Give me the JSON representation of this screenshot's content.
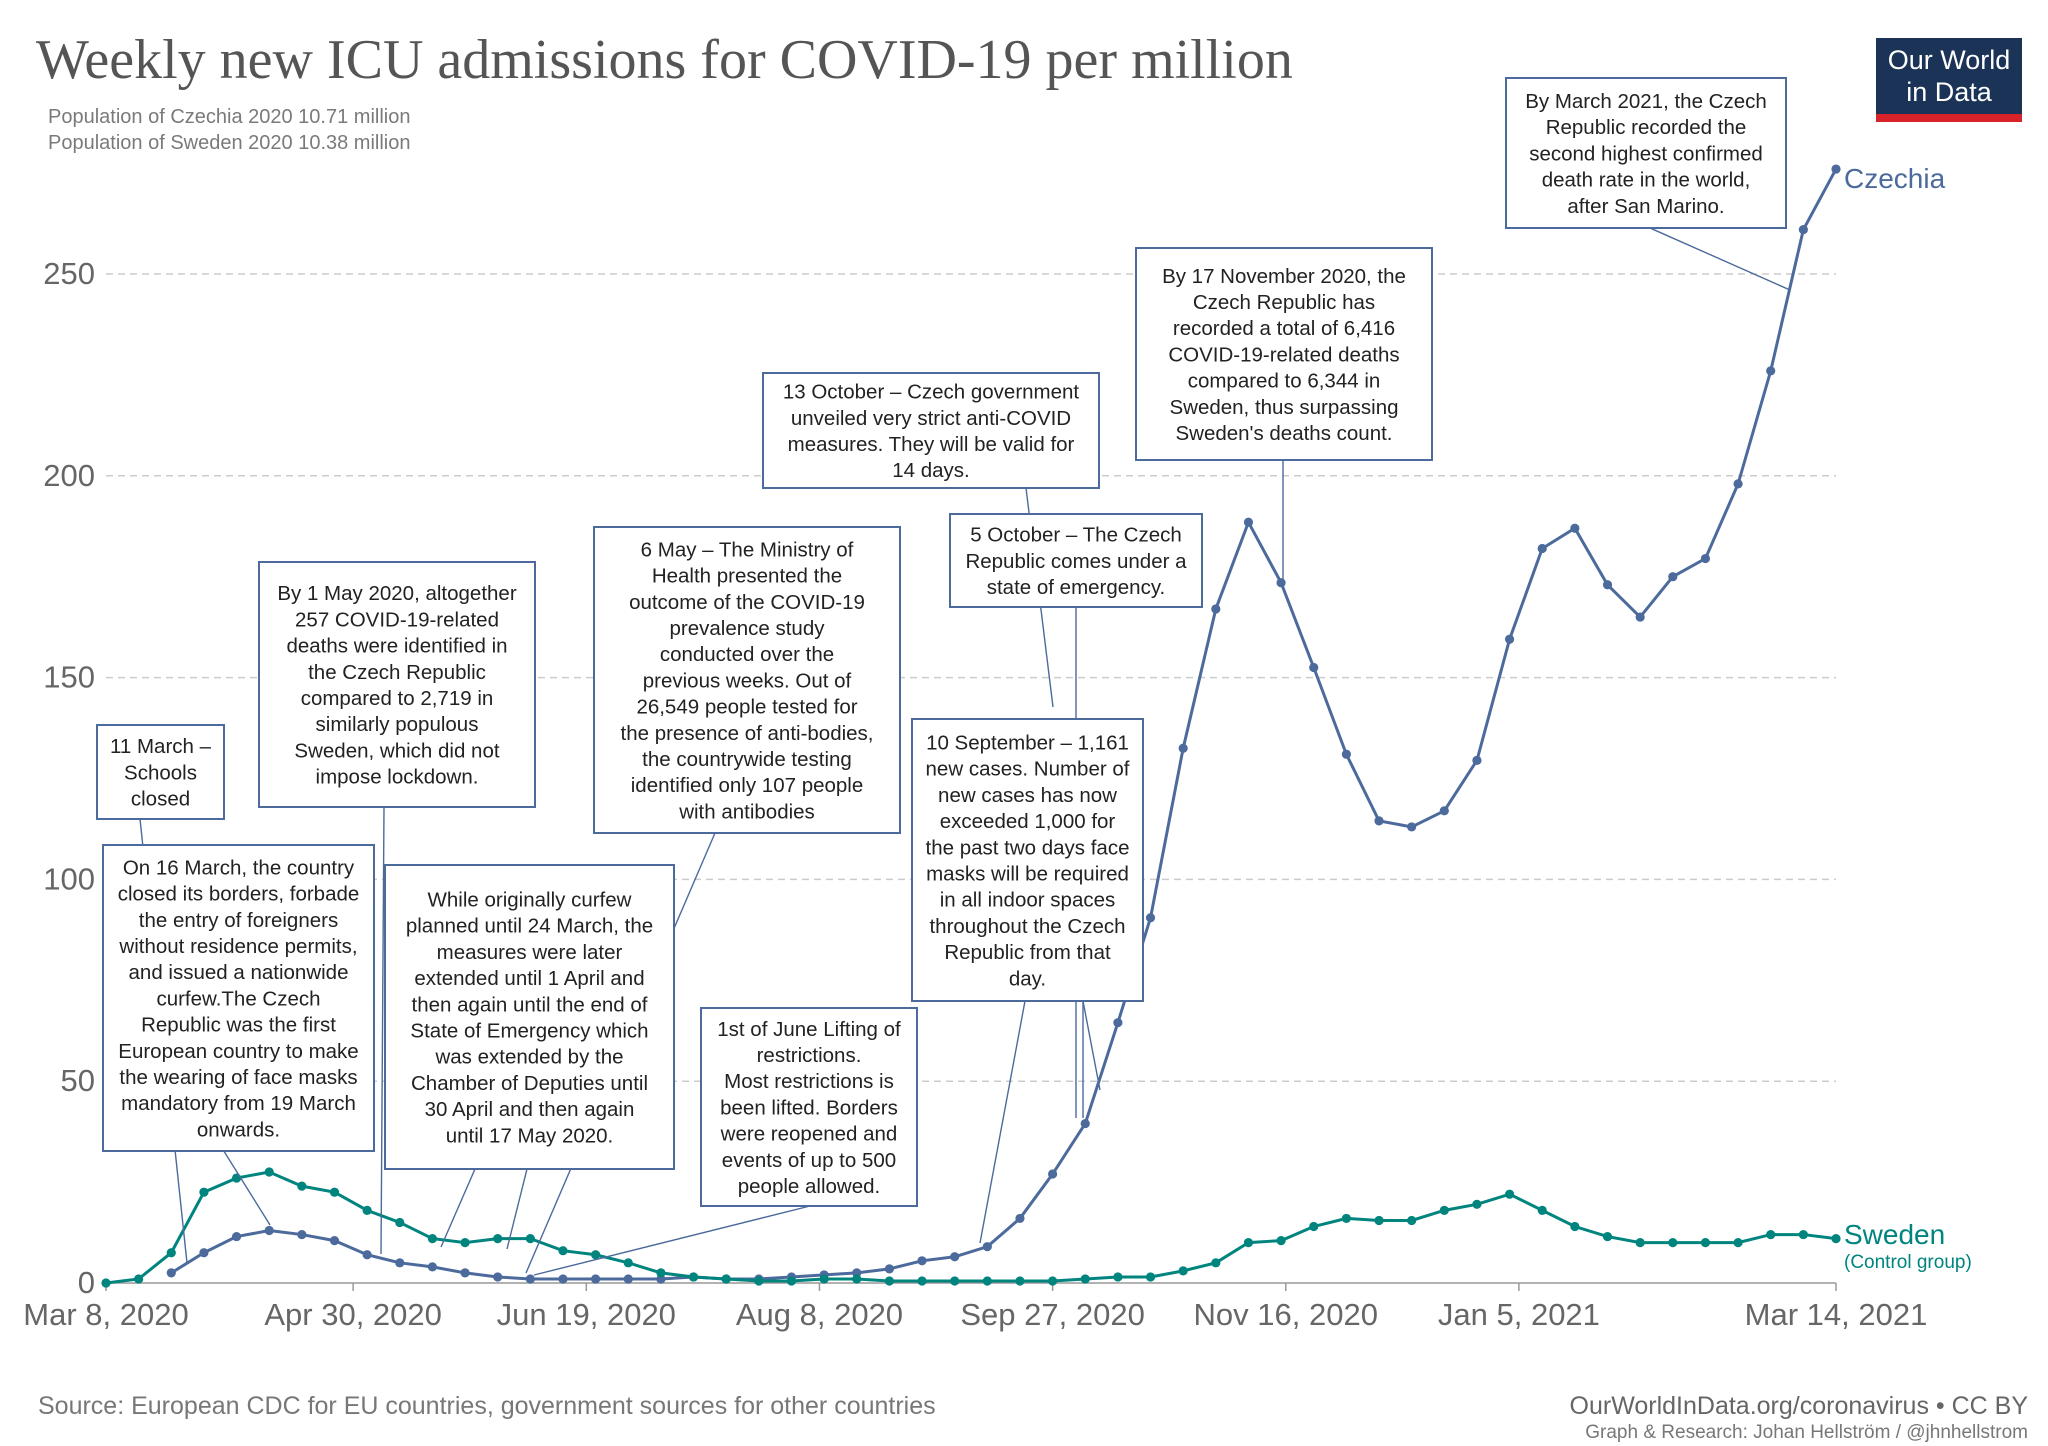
{
  "header": {
    "title": "Weekly new ICU admissions for COVID-19 per million",
    "subtitle_lines": [
      "Population of Czechia 2020 10.71 million",
      "Population of Sweden 2020 10.38 million"
    ]
  },
  "logo": {
    "line1": "Our World",
    "line2": "in Data"
  },
  "footer": {
    "source": "Source: European CDC for EU countries, government sources for other countries",
    "site": "OurWorldInData.org/coronavirus • CC BY",
    "credit": "Graph & Research: Johan Hellström / @jhnhellstrom"
  },
  "colors": {
    "czechia": "#4c6a9c",
    "sweden": "#00847e",
    "grid": "#cccccc",
    "axis": "#666666",
    "annotation_border": "#4c6a9c"
  },
  "chart_data": {
    "type": "line",
    "x_start": "2020-03-08",
    "x_step_days": 7,
    "x_ticks": [
      "Mar 8, 2020",
      "Apr 30, 2020",
      "Jun 19, 2020",
      "Aug 8, 2020",
      "Sep 27, 2020",
      "Nov 16, 2020",
      "Jan 5, 2021",
      "Mar 14, 2021"
    ],
    "x_tick_dates": [
      "2020-03-08",
      "2020-04-30",
      "2020-06-19",
      "2020-08-08",
      "2020-09-27",
      "2020-11-16",
      "2021-01-05",
      "2021-03-14"
    ],
    "ylim": [
      0,
      270
    ],
    "yticks": [
      0,
      50,
      100,
      150,
      200,
      250
    ],
    "grid": true,
    "series": [
      {
        "name": "Czechia",
        "start_week": 2,
        "values": [
          2.5,
          7.5,
          11.5,
          13,
          12,
          10.5,
          7,
          5,
          4,
          2.5,
          1.5,
          1,
          1,
          1,
          1,
          1,
          1.5,
          1,
          1,
          1.5,
          2,
          2.5,
          3.5,
          5.5,
          6.5,
          9,
          16,
          27,
          39.5,
          64.5,
          90.5,
          132.5,
          167,
          188.5,
          173.5,
          152.5,
          131,
          114.5,
          113,
          117,
          129.5,
          159.5,
          182,
          187,
          173,
          165,
          175,
          179.5,
          198,
          226,
          261,
          276
        ]
      },
      {
        "name": "Sweden",
        "label_suffix": "(Control group)",
        "start_week": 0,
        "values": [
          0,
          1,
          7.5,
          22.5,
          26,
          27.5,
          24,
          22.5,
          18,
          15,
          11,
          10,
          11,
          11,
          8,
          7,
          5,
          2.5,
          1.5,
          1,
          0.5,
          0.5,
          1,
          1,
          0.5,
          0.5,
          0.5,
          0.5,
          0.5,
          0.5,
          1,
          1.5,
          1.5,
          3,
          5,
          10,
          10.5,
          14,
          16,
          15.5,
          15.5,
          18,
          19.5,
          22,
          18,
          14,
          11.5,
          10,
          10,
          10,
          10,
          12,
          12,
          11
        ]
      }
    ],
    "annotations": [
      {
        "id": "schools",
        "lines": [
          "11 March –",
          "Schools",
          "closed"
        ]
      },
      {
        "id": "may1",
        "lines": [
          "By 1 May 2020, altogether",
          "257 COVID-19-related",
          "deaths were identified in",
          "the Czech Republic",
          "compared to 2,719 in",
          "similarly populous",
          "Sweden, which did not",
          "impose lockdown."
        ]
      },
      {
        "id": "march16",
        "lines": [
          "On 16 March, the country",
          "closed its borders, forbade",
          "the entry of foreigners",
          "without residence permits,",
          "and issued a nationwide",
          "curfew.The Czech",
          "Republic was the first",
          "European country to make",
          "the wearing of face masks",
          "mandatory from 19 March",
          "onwards."
        ]
      },
      {
        "id": "curfew",
        "lines": [
          "While originally curfew",
          "planned until 24 March, the",
          "measures were later",
          "extended until 1 April and",
          "then again until the end of",
          "State of Emergency which",
          "was extended by the",
          "Chamber of Deputies until",
          "30 April and then again",
          "until 17 May 2020."
        ]
      },
      {
        "id": "may6",
        "lines": [
          "6 May – The Ministry of",
          "Health presented the",
          "outcome of the COVID-19",
          "prevalence study",
          "conducted over the",
          "previous weeks. Out of",
          "26,549 people tested for",
          "the presence of anti-bodies,",
          "the countrywide testing",
          "identified only 107 people",
          "with antibodies"
        ]
      },
      {
        "id": "june1",
        "lines": [
          "1st of June Lifting of",
          "restrictions.",
          "Most restrictions is",
          "been lifted. Borders",
          "were reopened and",
          "events of up to 500",
          "people allowed."
        ]
      },
      {
        "id": "oct13",
        "lines": [
          "13 October – Czech government",
          "unveiled very strict anti-COVID",
          "measures. They will be valid for",
          "14 days."
        ]
      },
      {
        "id": "oct5",
        "lines": [
          "5 October – The Czech",
          "Republic comes under a",
          "state of emergency."
        ]
      },
      {
        "id": "sep10",
        "lines": [
          "10 September – 1,161",
          "new cases. Number of",
          "new cases has now",
          "exceeded 1,000 for",
          "the past two days face",
          "masks will be required",
          "in all indoor spaces",
          "throughout the Czech",
          "Republic from that",
          "day."
        ]
      },
      {
        "id": "nov17",
        "lines": [
          "By 17 November 2020, the",
          "Czech Republic has",
          "recorded a total of 6,416",
          "COVID-19-related deaths",
          "compared to 6,344 in",
          "Sweden, thus surpassing",
          "Sweden's deaths count."
        ]
      },
      {
        "id": "mar2021",
        "lines": [
          "By March 2021, the Czech",
          "Republic recorded the",
          "second highest confirmed",
          "death rate in the world,",
          "after San Marino."
        ]
      }
    ]
  }
}
